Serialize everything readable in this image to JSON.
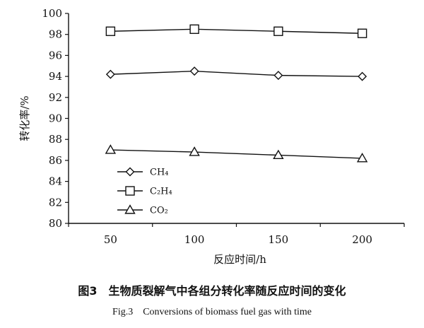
{
  "chart_data": {
    "type": "line",
    "xlabel": "反应时间/h",
    "ylabel": "转化率/%",
    "x": [
      50,
      100,
      150,
      200
    ],
    "x_ticks": [
      "50",
      "100",
      "150",
      "200"
    ],
    "y_ticks": [
      "80",
      "82",
      "84",
      "86",
      "88",
      "90",
      "92",
      "94",
      "96",
      "98",
      "100"
    ],
    "ylim": [
      80,
      100
    ],
    "grid": false,
    "legend_position": "lower-left",
    "series": [
      {
        "name": "CH₄",
        "marker": "diamond",
        "values": [
          94.2,
          94.5,
          94.1,
          94.0
        ]
      },
      {
        "name": "C₂H₄",
        "marker": "square",
        "values": [
          98.3,
          98.5,
          98.3,
          98.1
        ]
      },
      {
        "name": "CO₂",
        "marker": "triangle",
        "values": [
          87.0,
          86.8,
          86.5,
          86.2
        ]
      }
    ]
  },
  "caption": {
    "cn": "图3　生物质裂解气中各组分转化率随反应时间的变化",
    "en": "Fig.3　Conversions of biomass fuel gas with time"
  }
}
